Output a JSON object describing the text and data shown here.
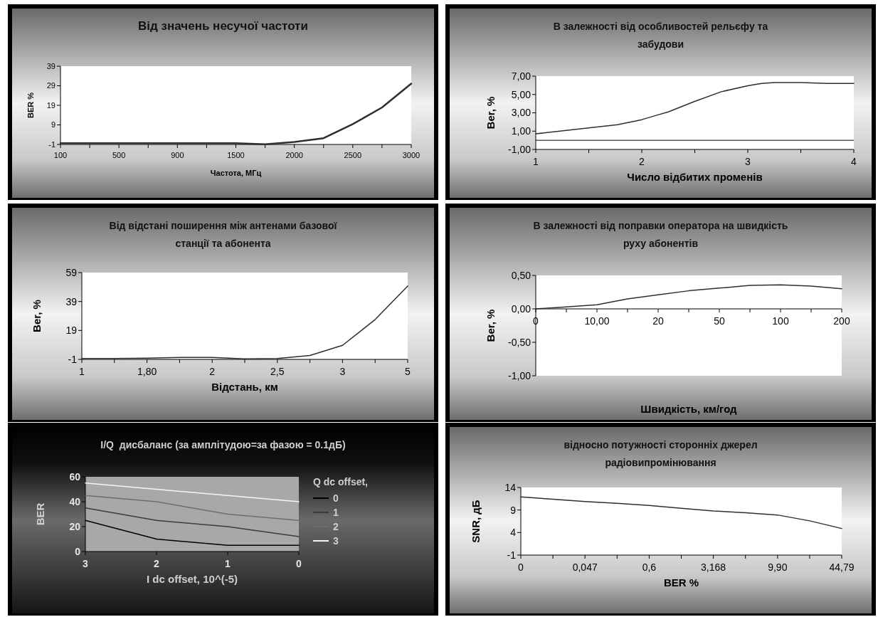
{
  "chart_data": [
    {
      "type": "line",
      "title": "Від значень несучої частоти",
      "xlabel": "Частота, МГц",
      "ylabel": "BER %",
      "categories": [
        "100",
        null,
        "500",
        null,
        "900",
        null,
        "1500",
        null,
        "2000",
        null,
        "2500",
        null,
        "3000"
      ],
      "ylim": [
        -1,
        39
      ],
      "yticks": [
        -1,
        9,
        19,
        29,
        39
      ],
      "series": [
        {
          "color": "#2e2e2e",
          "values": [
            -0.4,
            -0.4,
            -0.4,
            -0.4,
            -0.4,
            -0.4,
            -0.4,
            -0.9,
            0.3,
            2.2,
            9.4,
            17.9,
            30.1
          ]
        }
      ]
    },
    {
      "type": "line",
      "title": "В залежності від особливостей рельєфу та забудови",
      "xlabel": "Число відбитих променів",
      "ylabel": "Ber, %",
      "xlim": [
        1,
        4
      ],
      "xticks": [
        1,
        {
          "value": 1.5,
          "label": null
        },
        2,
        {
          "value": 2.5,
          "label": null
        },
        3,
        {
          "value": 3.5,
          "label": null
        },
        4
      ],
      "ylim": [
        -1,
        7
      ],
      "yticks": [
        {
          "value": -1,
          "label": "-1,00"
        },
        {
          "value": 1,
          "label": "1,00"
        },
        {
          "value": 3,
          "label": "3,00"
        },
        {
          "value": 5,
          "label": "5,00"
        },
        {
          "value": 7,
          "label": "7,00"
        }
      ],
      "ref_lines": [
        {
          "axis": "y",
          "value": 0,
          "color": "#000000"
        }
      ],
      "x": [
        1,
        1.77,
        2,
        2.13,
        2.25,
        2.49,
        2.75,
        3,
        3.13,
        3.25,
        3.5,
        3.75,
        4
      ],
      "series": [
        {
          "color": "#2e2e2e",
          "values": [
            0.7,
            1.7,
            2.25,
            2.7,
            3.1,
            4.2,
            5.3,
            5.95,
            6.2,
            6.3,
            6.3,
            6.2,
            6.2
          ]
        }
      ]
    },
    {
      "type": "line",
      "title": "Від відстані поширення між антенами базової станції та абонента",
      "xlabel": "Відстань, км",
      "ylabel": "Ber, %",
      "categories": [
        "1",
        null,
        "1,80",
        null,
        "2",
        null,
        "2,5",
        null,
        "3",
        null,
        "5"
      ],
      "ylim": [
        -1,
        59
      ],
      "yticks": [
        -1,
        19,
        39,
        59
      ],
      "series": [
        {
          "color": "#2e2e2e",
          "values": [
            -0.4,
            -0.4,
            -0.2,
            0.4,
            0.4,
            -0.6,
            -0.4,
            1.7,
            8.7,
            26.5,
            49.7
          ]
        }
      ]
    },
    {
      "type": "line",
      "title": "В залежності від поправки оператора на швидкість руху абонентів",
      "xlabel": "Швидкість, км/год",
      "ylabel": "Ber, %",
      "categories": [
        "0",
        null,
        "10,00",
        null,
        "20",
        null,
        "50",
        null,
        "100",
        null,
        "200"
      ],
      "ylim": [
        -1,
        0.5
      ],
      "yticks": [
        {
          "value": -1,
          "label": "-1,00"
        },
        {
          "value": -0.5,
          "label": "-0,50"
        },
        {
          "value": 0,
          "label": "0,00"
        },
        {
          "value": 0.5,
          "label": "0,50"
        }
      ],
      "series": [
        {
          "color": "#2e2e2e",
          "values": [
            0,
            0.03,
            0.06,
            0.15,
            0.21,
            0.27,
            0.31,
            0.35,
            0.36,
            0.34,
            0.3
          ]
        }
      ]
    },
    {
      "type": "line",
      "title": "I/Q  дисбаланс (за амплітудою=за фазою = 0.1дБ)",
      "xlabel": "I dc offset, 10^(-5)",
      "ylabel": "BER",
      "legend_title": "Q dc offset,",
      "legend": "right",
      "categories": [
        "3",
        "2",
        "1",
        "0"
      ],
      "ylim": [
        0,
        60
      ],
      "yticks": [
        0,
        20,
        40,
        60
      ],
      "series": [
        {
          "name": "0",
          "color": "#000000",
          "values": [
            25,
            10,
            5,
            5
          ]
        },
        {
          "name": "1",
          "color": "#3c3c3c",
          "values": [
            35,
            25,
            20,
            12
          ]
        },
        {
          "name": "2",
          "color": "#6e6e6e",
          "values": [
            45,
            40,
            30,
            25
          ]
        },
        {
          "name": "3",
          "color": "#f5f5f5",
          "values": [
            55,
            50,
            45,
            40
          ]
        }
      ]
    },
    {
      "type": "line",
      "title": "відносно потужності сторонніх джерел радіовипромінювання",
      "xlabel": "BER %",
      "ylabel": "SNR, дБ",
      "categories": [
        "0",
        null,
        "0,047",
        null,
        "0,6",
        null,
        "3,168",
        null,
        "9,90",
        null,
        "44,79"
      ],
      "ylim": [
        -1,
        14
      ],
      "yticks": [
        -1,
        4,
        9,
        14
      ],
      "series": [
        {
          "color": "#2e2e2e",
          "values": [
            11.9,
            11.4,
            10.9,
            10.5,
            10.0,
            9.4,
            8.8,
            8.4,
            7.9,
            6.6,
            4.9
          ]
        }
      ]
    }
  ]
}
